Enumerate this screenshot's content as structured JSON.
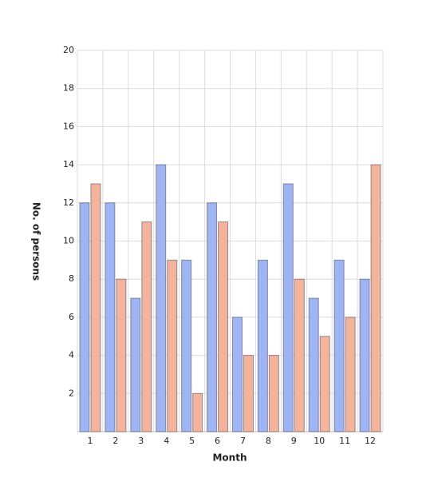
{
  "chart_data": {
    "type": "bar",
    "x_label": "Month",
    "y_label": "No. of persons",
    "categories": [
      "1",
      "2",
      "3",
      "4",
      "5",
      "6",
      "7",
      "8",
      "9",
      "10",
      "11",
      "12"
    ],
    "series": [
      {
        "color": "#9fb4f2",
        "values": [
          12,
          12,
          7,
          14,
          9,
          12,
          6,
          9,
          13,
          7,
          9,
          8
        ]
      },
      {
        "color": "#f4b39c",
        "values": [
          13,
          8,
          11,
          9,
          2,
          11,
          4,
          4,
          8,
          5,
          6,
          14
        ]
      }
    ],
    "ylim": [
      0,
      20
    ],
    "yticks": [
      2,
      4,
      6,
      8,
      10,
      12,
      14,
      16,
      18,
      20
    ],
    "grid": true
  }
}
